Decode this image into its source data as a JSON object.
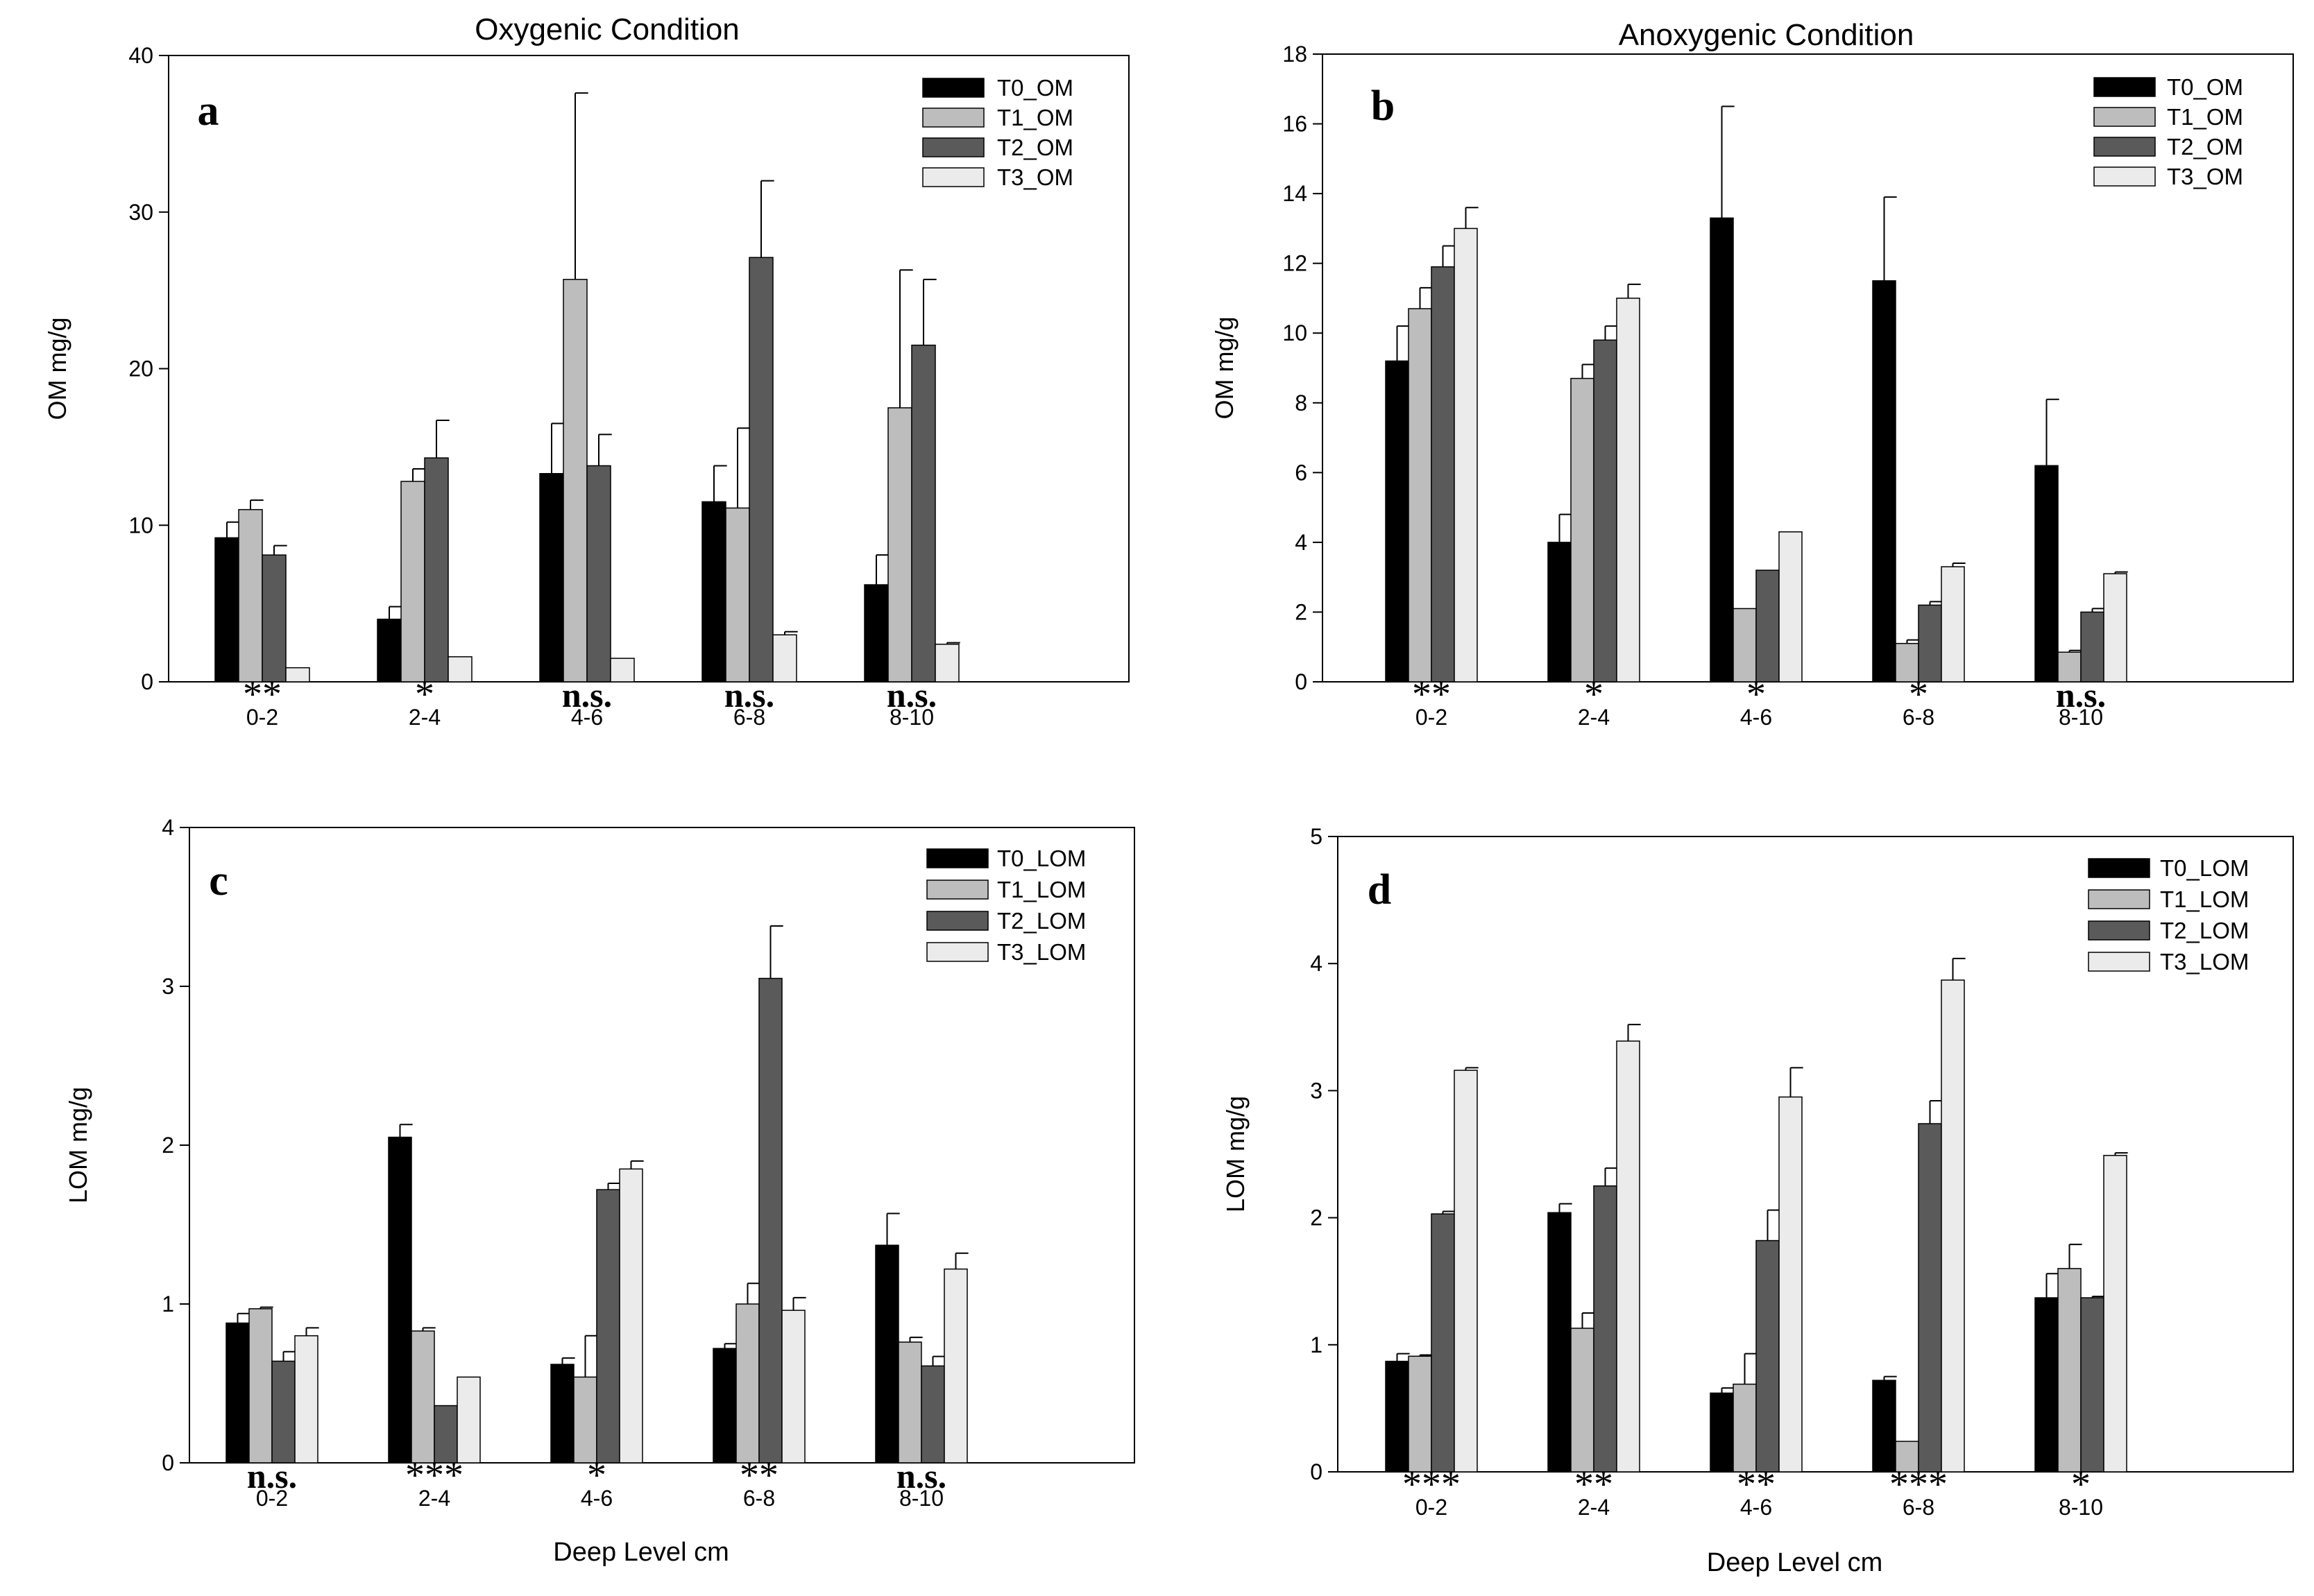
{
  "colors": {
    "T0": "#000000",
    "T1": "#bdbdbd",
    "T2": "#5a5a5a",
    "T3": "#ebebeb",
    "axis": "#000000"
  },
  "shared": {
    "xlabel": "Deep Level cm"
  },
  "chart_data": [
    {
      "id": "a",
      "type": "bar",
      "panel_letter": "a",
      "title": "Oxygenic Condition",
      "ylabel": "OM mg/g",
      "xlabel": "",
      "ylim": [
        0,
        40
      ],
      "yticks": [
        0,
        10,
        20,
        30,
        40
      ],
      "categories": [
        "0-2",
        "2-4",
        "4-6",
        "6-8",
        "8-10"
      ],
      "significance": [
        "**",
        "*",
        "n.s.",
        "n.s.",
        "n.s."
      ],
      "legend_position": "top-right",
      "series": [
        {
          "name": "T0_OM",
          "key": "T0",
          "values": [
            9.2,
            4.0,
            13.3,
            11.5,
            6.2
          ],
          "errors": [
            1.0,
            0.8,
            3.2,
            2.3,
            1.9
          ]
        },
        {
          "name": "T1_OM",
          "key": "T1",
          "values": [
            11.0,
            12.8,
            25.7,
            11.1,
            17.5
          ],
          "errors": [
            0.6,
            0.8,
            11.9,
            5.1,
            8.8
          ]
        },
        {
          "name": "T2_OM",
          "key": "T2",
          "values": [
            8.1,
            14.3,
            13.8,
            27.1,
            21.5
          ],
          "errors": [
            0.6,
            2.4,
            2.0,
            4.9,
            4.2
          ]
        },
        {
          "name": "T3_OM",
          "key": "T3",
          "values": [
            0.9,
            1.6,
            1.5,
            3.0,
            2.4
          ],
          "errors": [
            0.0,
            0.0,
            0.0,
            0.2,
            0.1
          ]
        }
      ]
    },
    {
      "id": "b",
      "type": "bar",
      "panel_letter": "b",
      "title": "Anoxygenic Condition",
      "ylabel": "OM mg/g",
      "xlabel": "",
      "ylim": [
        0,
        18
      ],
      "yticks": [
        0,
        2,
        4,
        6,
        8,
        10,
        12,
        14,
        16,
        18
      ],
      "categories": [
        "0-2",
        "2-4",
        "4-6",
        "6-8",
        "8-10"
      ],
      "significance": [
        "**",
        "*",
        "*",
        "*",
        "n.s."
      ],
      "legend_position": "top-right",
      "series": [
        {
          "name": "T0_OM",
          "key": "T0",
          "values": [
            9.2,
            4.0,
            13.3,
            11.5,
            6.2
          ],
          "errors": [
            1.0,
            0.8,
            3.2,
            2.4,
            1.9
          ]
        },
        {
          "name": "T1_OM",
          "key": "T1",
          "values": [
            10.7,
            8.7,
            2.1,
            1.1,
            0.85
          ],
          "errors": [
            0.6,
            0.4,
            0.0,
            0.1,
            0.05
          ]
        },
        {
          "name": "T2_OM",
          "key": "T2",
          "values": [
            11.9,
            9.8,
            3.2,
            2.2,
            2.0
          ],
          "errors": [
            0.6,
            0.4,
            0.0,
            0.1,
            0.1
          ]
        },
        {
          "name": "T3_OM",
          "key": "T3",
          "values": [
            13.0,
            11.0,
            4.3,
            3.3,
            3.1
          ],
          "errors": [
            0.6,
            0.4,
            0.0,
            0.1,
            0.05
          ]
        }
      ]
    },
    {
      "id": "c",
      "type": "bar",
      "panel_letter": "c",
      "title": "",
      "ylabel": "LOM mg/g",
      "xlabel": "Deep Level cm",
      "ylim": [
        0,
        4
      ],
      "yticks": [
        0,
        1,
        2,
        3,
        4
      ],
      "categories": [
        "0-2",
        "2-4",
        "4-6",
        "6-8",
        "8-10"
      ],
      "significance": [
        "n.s.",
        "***",
        "*",
        "**",
        "n.s."
      ],
      "legend_position": "top-right",
      "series": [
        {
          "name": "T0_LOM",
          "key": "T0",
          "values": [
            0.88,
            2.05,
            0.62,
            0.72,
            1.37
          ],
          "errors": [
            0.06,
            0.08,
            0.04,
            0.03,
            0.2
          ]
        },
        {
          "name": "T1_LOM",
          "key": "T1",
          "values": [
            0.97,
            0.83,
            0.54,
            1.0,
            0.76
          ],
          "errors": [
            0.01,
            0.02,
            0.26,
            0.13,
            0.03
          ]
        },
        {
          "name": "T2_LOM",
          "key": "T2",
          "values": [
            0.64,
            0.36,
            1.72,
            3.05,
            0.61
          ],
          "errors": [
            0.06,
            0.0,
            0.04,
            0.33,
            0.06
          ]
        },
        {
          "name": "T3_LOM",
          "key": "T3",
          "values": [
            0.8,
            0.54,
            1.85,
            0.96,
            1.22
          ],
          "errors": [
            0.05,
            0.0,
            0.05,
            0.08,
            0.1
          ]
        }
      ]
    },
    {
      "id": "d",
      "type": "bar",
      "panel_letter": "d",
      "title": "",
      "ylabel": "LOM mg/g",
      "xlabel": "Deep Level cm",
      "ylim": [
        0,
        5
      ],
      "yticks": [
        0,
        1,
        2,
        3,
        4,
        5
      ],
      "categories": [
        "0-2",
        "2-4",
        "4-6",
        "6-8",
        "8-10"
      ],
      "significance": [
        "***",
        "**",
        "**",
        "***",
        "*"
      ],
      "legend_position": "top-right",
      "series": [
        {
          "name": "T0_LOM",
          "key": "T0",
          "values": [
            0.87,
            2.04,
            0.62,
            0.72,
            1.37
          ],
          "errors": [
            0.06,
            0.07,
            0.04,
            0.03,
            0.19
          ]
        },
        {
          "name": "T1_LOM",
          "key": "T1",
          "values": [
            0.91,
            1.13,
            0.69,
            0.24,
            1.6
          ],
          "errors": [
            0.01,
            0.12,
            0.24,
            0.0,
            0.19
          ]
        },
        {
          "name": "T2_LOM",
          "key": "T2",
          "values": [
            2.03,
            2.25,
            1.82,
            2.74,
            1.37
          ],
          "errors": [
            0.02,
            0.14,
            0.24,
            0.18,
            0.01
          ]
        },
        {
          "name": "T3_LOM",
          "key": "T3",
          "values": [
            3.16,
            3.39,
            2.95,
            3.87,
            2.49
          ],
          "errors": [
            0.02,
            0.13,
            0.23,
            0.17,
            0.02
          ]
        }
      ]
    }
  ]
}
